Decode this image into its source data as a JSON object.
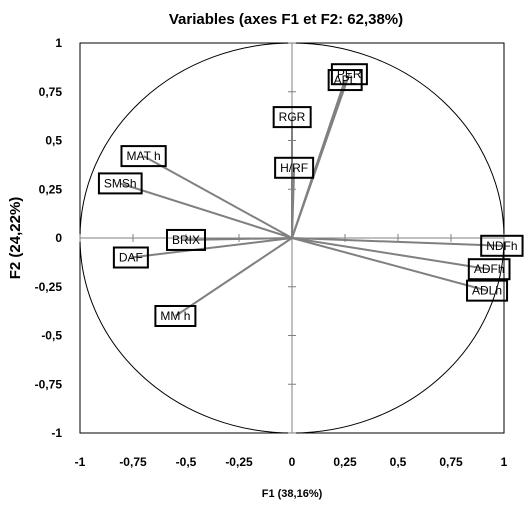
{
  "chart_data": {
    "type": "scatter",
    "subtype": "correlation-circle",
    "title": "Variables (axes F1 et F2: 62,38%)",
    "xlabel": "F1 (38,16%)",
    "ylabel": "F2 (24,22%)",
    "xlim": [
      -1,
      1
    ],
    "ylim": [
      -1,
      1
    ],
    "x_ticks": [
      "-1",
      "-0,75",
      "-0,5",
      "-0,25",
      "0",
      "0,25",
      "0,5",
      "0,75",
      "1"
    ],
    "y_ticks": [
      "1",
      "0,75",
      "0,5",
      "0,25",
      "0",
      "-0,25",
      "-0,5",
      "-0,75",
      "-1"
    ],
    "grid": false,
    "legend": "none",
    "line_color": "#808080",
    "points": [
      {
        "name": "PER",
        "x": 0.27,
        "y": 0.84
      },
      {
        "name": "APL",
        "x": 0.25,
        "y": 0.81
      },
      {
        "name": "RGR",
        "x": 0.0,
        "y": 0.62
      },
      {
        "name": "H/RF",
        "x": 0.01,
        "y": 0.36
      },
      {
        "name": "MAT h",
        "x": -0.7,
        "y": 0.42
      },
      {
        "name": "SMSh",
        "x": -0.81,
        "y": 0.28
      },
      {
        "name": "BRIX",
        "x": -0.5,
        "y": -0.01
      },
      {
        "name": "DAF",
        "x": -0.76,
        "y": -0.1
      },
      {
        "name": "MM h",
        "x": -0.55,
        "y": -0.4
      },
      {
        "name": "NDFh",
        "x": 0.99,
        "y": -0.04
      },
      {
        "name": "ADFh",
        "x": 0.93,
        "y": -0.16
      },
      {
        "name": "ADLh",
        "x": 0.92,
        "y": -0.27
      }
    ]
  }
}
